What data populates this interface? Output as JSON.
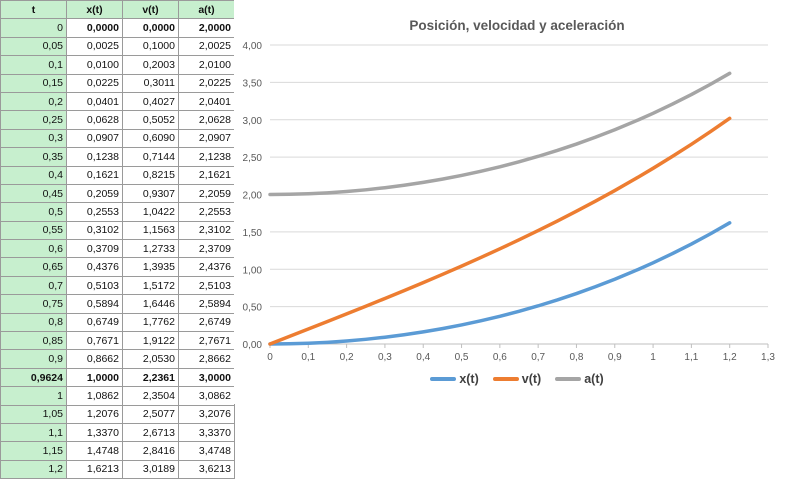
{
  "table": {
    "headers": [
      "t",
      "x(t)",
      "v(t)",
      "a(t)"
    ],
    "rows": [
      [
        "0",
        "0,0000",
        "0,0000",
        "2,0000"
      ],
      [
        "0,05",
        "0,0025",
        "0,1000",
        "2,0025"
      ],
      [
        "0,1",
        "0,0100",
        "0,2003",
        "2,0100"
      ],
      [
        "0,15",
        "0,0225",
        "0,3011",
        "2,0225"
      ],
      [
        "0,2",
        "0,0401",
        "0,4027",
        "2,0401"
      ],
      [
        "0,25",
        "0,0628",
        "0,5052",
        "2,0628"
      ],
      [
        "0,3",
        "0,0907",
        "0,6090",
        "2,0907"
      ],
      [
        "0,35",
        "0,1238",
        "0,7144",
        "2,1238"
      ],
      [
        "0,4",
        "0,1621",
        "0,8215",
        "2,1621"
      ],
      [
        "0,45",
        "0,2059",
        "0,9307",
        "2,2059"
      ],
      [
        "0,5",
        "0,2553",
        "1,0422",
        "2,2553"
      ],
      [
        "0,55",
        "0,3102",
        "1,1563",
        "2,3102"
      ],
      [
        "0,6",
        "0,3709",
        "1,2733",
        "2,3709"
      ],
      [
        "0,65",
        "0,4376",
        "1,3935",
        "2,4376"
      ],
      [
        "0,7",
        "0,5103",
        "1,5172",
        "2,5103"
      ],
      [
        "0,75",
        "0,5894",
        "1,6446",
        "2,5894"
      ],
      [
        "0,8",
        "0,6749",
        "1,7762",
        "2,6749"
      ],
      [
        "0,85",
        "0,7671",
        "1,9122",
        "2,7671"
      ],
      [
        "0,9",
        "0,8662",
        "2,0530",
        "2,8662"
      ],
      [
        "0,9624",
        "1,0000",
        "2,2361",
        "3,0000"
      ],
      [
        "1",
        "1,0862",
        "2,3504",
        "3,0862"
      ],
      [
        "1,05",
        "1,2076",
        "2,5077",
        "3,2076"
      ],
      [
        "1,1",
        "1,3370",
        "2,6713",
        "3,3370"
      ],
      [
        "1,15",
        "1,4748",
        "2,8416",
        "3,4748"
      ],
      [
        "1,2",
        "1,6213",
        "3,0189",
        "3,6213"
      ]
    ],
    "bold_row_index": 19,
    "header_fill": "#c7efce"
  },
  "chart_data": {
    "type": "line",
    "title": "Posición,  velocidad y aceleración",
    "xlim": [
      0,
      1.3
    ],
    "ylim": [
      0,
      4
    ],
    "x_ticks": [
      0,
      0.1,
      0.2,
      0.3,
      0.4,
      0.5,
      0.6,
      0.7,
      0.8,
      0.9,
      1,
      1.1,
      1.2,
      1.3
    ],
    "x_tick_labels": [
      "0",
      "0,1",
      "0,2",
      "0,3",
      "0,4",
      "0,5",
      "0,6",
      "0,7",
      "0,8",
      "0,9",
      "1",
      "1,1",
      "1,2",
      "1,3"
    ],
    "y_ticks": [
      0,
      0.5,
      1,
      1.5,
      2,
      2.5,
      3,
      3.5,
      4
    ],
    "y_tick_labels": [
      "0,00",
      "0,50",
      "1,00",
      "1,50",
      "2,00",
      "2,50",
      "3,00",
      "3,50",
      "4,00"
    ],
    "grid": true,
    "legend_position": "bottom",
    "x": [
      0,
      0.05,
      0.1,
      0.15,
      0.2,
      0.25,
      0.3,
      0.35,
      0.4,
      0.45,
      0.5,
      0.55,
      0.6,
      0.65,
      0.7,
      0.75,
      0.8,
      0.85,
      0.9,
      0.9624,
      1,
      1.05,
      1.1,
      1.15,
      1.2
    ],
    "series": [
      {
        "name": "x(t)",
        "color": "#5b9bd5",
        "values": [
          0,
          0.0025,
          0.01,
          0.0225,
          0.0401,
          0.0628,
          0.0907,
          0.1238,
          0.1621,
          0.2059,
          0.2553,
          0.3102,
          0.3709,
          0.4376,
          0.5103,
          0.5894,
          0.6749,
          0.7671,
          0.8662,
          1.0,
          1.0862,
          1.2076,
          1.337,
          1.4748,
          1.6213
        ]
      },
      {
        "name": "v(t)",
        "color": "#ed7d31",
        "values": [
          0,
          0.1,
          0.2003,
          0.3011,
          0.4027,
          0.5052,
          0.609,
          0.7144,
          0.8215,
          0.9307,
          1.0422,
          1.1563,
          1.2733,
          1.3935,
          1.5172,
          1.6446,
          1.7762,
          1.9122,
          2.053,
          2.2361,
          2.3504,
          2.5077,
          2.6713,
          2.8416,
          3.0189
        ]
      },
      {
        "name": "a(t)",
        "color": "#a5a5a5",
        "values": [
          2,
          2.0025,
          2.01,
          2.0225,
          2.0401,
          2.0628,
          2.0907,
          2.1238,
          2.1621,
          2.2059,
          2.2553,
          2.3102,
          2.3709,
          2.4376,
          2.5103,
          2.5894,
          2.6749,
          2.7671,
          2.8662,
          3.0,
          3.0862,
          3.2076,
          3.337,
          3.4748,
          3.6213
        ]
      }
    ]
  }
}
